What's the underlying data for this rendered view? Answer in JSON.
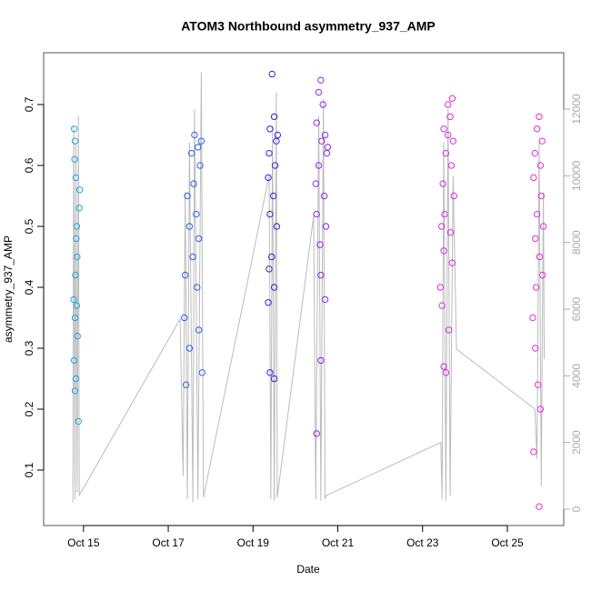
{
  "chart_data": {
    "type": "scatter",
    "title": "ATOM3 Northbound asymmetry_937_AMP",
    "xlabel": "Date",
    "ylabel": "asymmetry_937_AMP",
    "xlim": [
      14.06,
      26.33
    ],
    "xticks": [
      {
        "value": 15,
        "label": "Oct 15"
      },
      {
        "value": 17,
        "label": "Oct 17"
      },
      {
        "value": 19,
        "label": "Oct 19"
      },
      {
        "value": 21,
        "label": "Oct 21"
      },
      {
        "value": 23,
        "label": "Oct 23"
      },
      {
        "value": 25,
        "label": "Oct 25"
      }
    ],
    "ylim": [
      0.009,
      0.785
    ],
    "yticks": [
      0.1,
      0.2,
      0.3,
      0.4,
      0.5,
      0.6,
      0.7
    ],
    "y2lim": [
      -491,
      13691
    ],
    "y2ticks": [
      0,
      2000,
      4000,
      6000,
      8000,
      10000,
      12000
    ],
    "series": [
      {
        "color": "#1fa8e8",
        "x": [
          14.78,
          14.8,
          14.82,
          14.79,
          14.9,
          14.83,
          14.85,
          14.81,
          14.77,
          14.84,
          14.8,
          14.86,
          14.78,
          14.82,
          14.8,
          14.88,
          14.84,
          14.91
        ],
        "values": [
          0.66,
          0.64,
          0.58,
          0.61,
          0.53,
          0.48,
          0.45,
          0.42,
          0.38,
          0.37,
          0.35,
          0.32,
          0.28,
          0.25,
          0.23,
          0.18,
          0.5,
          0.56
        ]
      },
      {
        "color": "#2b62e6",
        "x": [
          17.62,
          17.7,
          17.55,
          17.75,
          17.6,
          17.45,
          17.66,
          17.5,
          17.72,
          17.58,
          17.4,
          17.68,
          17.38,
          17.72,
          17.5,
          17.8,
          17.42,
          17.78
        ],
        "values": [
          0.65,
          0.63,
          0.62,
          0.6,
          0.57,
          0.55,
          0.52,
          0.5,
          0.48,
          0.45,
          0.42,
          0.4,
          0.35,
          0.33,
          0.3,
          0.26,
          0.24,
          0.64
        ]
      },
      {
        "color": "#3a1ee0",
        "x": [
          19.45,
          19.5,
          19.4,
          19.55,
          19.38,
          19.52,
          19.36,
          19.48,
          19.4,
          19.56,
          19.44,
          19.38,
          19.5,
          19.36,
          19.4,
          19.5,
          19.58
        ],
        "values": [
          0.75,
          0.68,
          0.66,
          0.64,
          0.62,
          0.6,
          0.58,
          0.55,
          0.52,
          0.5,
          0.45,
          0.43,
          0.4,
          0.375,
          0.26,
          0.25,
          0.65
        ]
      },
      {
        "color": "#8a2ae6",
        "x": [
          20.6,
          20.55,
          20.65,
          20.5,
          20.7,
          20.62,
          20.74,
          20.55,
          20.48,
          20.68,
          20.5,
          20.72,
          20.58,
          20.6,
          20.7,
          20.6,
          20.5,
          20.76
        ],
        "values": [
          0.74,
          0.72,
          0.7,
          0.67,
          0.65,
          0.64,
          0.62,
          0.6,
          0.57,
          0.55,
          0.52,
          0.5,
          0.47,
          0.42,
          0.38,
          0.28,
          0.16,
          0.63
        ]
      },
      {
        "color": "#d42ee0",
        "x": [
          23.7,
          23.6,
          23.65,
          23.5,
          23.72,
          23.55,
          23.68,
          23.48,
          23.74,
          23.52,
          23.45,
          23.66,
          23.5,
          23.7,
          23.42,
          23.46,
          23.62,
          23.5,
          23.55,
          23.6
        ],
        "values": [
          0.71,
          0.7,
          0.68,
          0.66,
          0.64,
          0.62,
          0.6,
          0.57,
          0.55,
          0.52,
          0.5,
          0.49,
          0.46,
          0.44,
          0.4,
          0.37,
          0.33,
          0.27,
          0.26,
          0.65
        ]
      },
      {
        "color": "#e82ed8",
        "x": [
          25.75,
          25.7,
          25.82,
          25.65,
          25.78,
          25.62,
          25.8,
          25.7,
          25.85,
          25.66,
          25.76,
          25.83,
          25.68,
          25.6,
          25.66,
          25.72,
          25.78,
          25.62,
          25.75
        ],
        "values": [
          0.68,
          0.66,
          0.64,
          0.62,
          0.6,
          0.58,
          0.55,
          0.52,
          0.5,
          0.48,
          0.45,
          0.42,
          0.4,
          0.35,
          0.3,
          0.24,
          0.2,
          0.13,
          0.04
        ]
      },
      {
        "type": "line",
        "axis": "y2",
        "color": "#bbbbbb",
        "x": [
          14.75,
          14.77,
          14.8,
          14.82,
          14.85,
          14.88,
          14.9,
          14.94,
          17.28,
          17.35,
          17.4,
          17.45,
          17.5,
          17.58,
          17.62,
          17.7,
          17.78,
          17.83,
          19.38,
          19.42,
          19.46,
          19.5,
          19.55,
          19.57,
          20.43,
          20.48,
          20.55,
          20.6,
          20.66,
          20.7,
          20.73,
          23.43,
          23.46,
          23.5,
          23.55,
          23.6,
          23.65,
          23.72,
          23.8,
          25.65,
          25.7,
          25.75,
          25.8,
          25.85,
          25.87
        ],
        "values": [
          200,
          11500,
          300,
          11000,
          500,
          11800,
          400,
          500,
          5700,
          1000,
          9500,
          300,
          11000,
          200,
          12000,
          300,
          13100,
          350,
          10000,
          300,
          11500,
          250,
          12500,
          350,
          8800,
          300,
          11800,
          250,
          12300,
          300,
          410,
          2000,
          300,
          11000,
          250,
          12000,
          400,
          10000,
          4800,
          3000,
          1500,
          11000,
          700,
          9500,
          4500
        ]
      }
    ]
  }
}
